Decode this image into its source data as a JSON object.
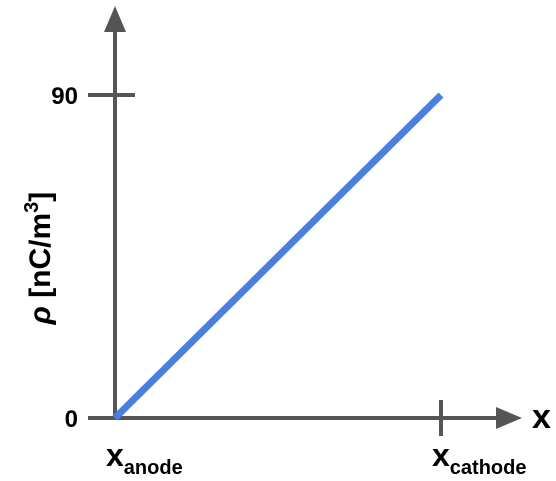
{
  "chart_data": {
    "type": "line",
    "xlabel": "x",
    "ylabel": {
      "prefix": "ρ",
      "unit_open": " [nC/m",
      "superscript": "3",
      "unit_close": "]"
    },
    "x_ticks": [
      {
        "main": "x",
        "sub": "anode"
      },
      {
        "main": "x",
        "sub": "cathode"
      }
    ],
    "y_ticks": [
      "90",
      "0"
    ],
    "ylim": [
      0,
      90
    ],
    "series": [
      {
        "x": [
          "anode",
          "cathode"
        ],
        "y": [
          0,
          90
        ]
      }
    ],
    "colors": {
      "line": "#4a7fe0",
      "axis": "#555555"
    },
    "grid": false
  }
}
